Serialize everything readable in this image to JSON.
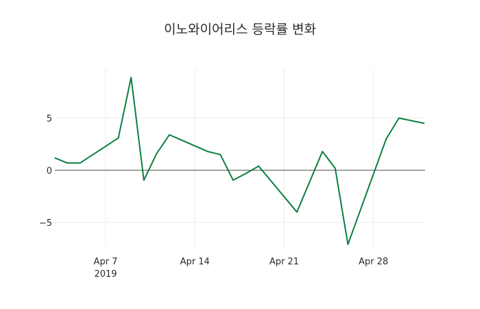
{
  "chart_data": {
    "type": "line",
    "title": "이노와이어리스 등락률 변화",
    "xlabel": "",
    "ylabel": "",
    "x": [
      "2019-04-03",
      "2019-04-04",
      "2019-04-05",
      "2019-04-08",
      "2019-04-09",
      "2019-04-10",
      "2019-04-11",
      "2019-04-12",
      "2019-04-15",
      "2019-04-16",
      "2019-04-17",
      "2019-04-18",
      "2019-04-19",
      "2019-04-22",
      "2019-04-23",
      "2019-04-24",
      "2019-04-25",
      "2019-04-26",
      "2019-04-29",
      "2019-04-30",
      "2019-05-02"
    ],
    "series": [
      {
        "name": "등락률",
        "color": "#0a7f3f",
        "values": [
          1.2,
          0.7,
          0.7,
          3.1,
          8.9,
          -0.95,
          1.6,
          3.4,
          1.8,
          1.5,
          -0.95,
          -0.3,
          0.4,
          -4.0,
          -1.1,
          1.8,
          0.2,
          -7.1,
          3.0,
          5.0,
          4.5
        ]
      }
    ],
    "x_tick_labels": [
      "Apr 7\n2019",
      "Apr 14",
      "Apr 21",
      "Apr 28"
    ],
    "y_ticks": [
      -5,
      0,
      5
    ],
    "ylim": [
      -7.4,
      9.7
    ],
    "grid": true,
    "zero_line": true
  },
  "title": "이노와이어리스 등락률 변화",
  "x_ticks": [
    {
      "label": "Apr 7",
      "sub": "2019",
      "day": 7
    },
    {
      "label": "Apr 14",
      "sub": "",
      "day": 14
    },
    {
      "label": "Apr 21",
      "sub": "",
      "day": 21
    },
    {
      "label": "Apr 28",
      "sub": "",
      "day": 28
    }
  ],
  "y_ticks": [
    {
      "label": "5",
      "value": 5
    },
    {
      "label": "0",
      "value": 0
    },
    {
      "label": "−5",
      "value": -5
    }
  ],
  "days": [
    3,
    4,
    5,
    8,
    9,
    10,
    11,
    12,
    15,
    16,
    17,
    18,
    19,
    22,
    23,
    24,
    25,
    26,
    29,
    30,
    32
  ],
  "line_color": "#0a7f3f",
  "grid_color": "#ebebeb",
  "zero_color": "#444444"
}
